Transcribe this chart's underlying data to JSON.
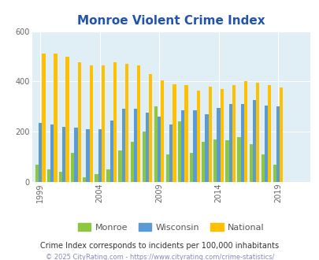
{
  "title": "Monroe Violent Crime Index",
  "title_color": "#2255aa",
  "subtitle": "Crime Index corresponds to incidents per 100,000 inhabitants",
  "footer": "© 2025 CityRating.com - https://www.cityrating.com/crime-statistics/",
  "years": [
    1999,
    2000,
    2001,
    2002,
    2003,
    2004,
    2005,
    2006,
    2007,
    2008,
    2009,
    2010,
    2011,
    2012,
    2013,
    2014,
    2015,
    2016,
    2017,
    2018,
    2019,
    2020,
    2021
  ],
  "monroe": [
    70,
    50,
    40,
    115,
    20,
    30,
    50,
    125,
    160,
    200,
    300,
    110,
    240,
    115,
    160,
    170,
    165,
    180,
    150,
    110,
    70,
    0,
    0
  ],
  "wisconsin": [
    235,
    230,
    220,
    215,
    210,
    210,
    245,
    290,
    290,
    275,
    260,
    230,
    285,
    285,
    270,
    295,
    310,
    310,
    325,
    305,
    300,
    0,
    0
  ],
  "national": [
    510,
    510,
    500,
    475,
    465,
    465,
    475,
    470,
    465,
    430,
    405,
    390,
    385,
    365,
    380,
    370,
    385,
    400,
    395,
    385,
    375,
    0,
    0
  ],
  "monroe_color": "#8dc63f",
  "wisconsin_color": "#5b9bd5",
  "national_color": "#ffc000",
  "bg_color": "#e0eff5",
  "ylim": [
    0,
    600
  ],
  "yticks": [
    0,
    200,
    400,
    600
  ],
  "xlabel_ticks": [
    1999,
    2004,
    2009,
    2014,
    2019
  ],
  "bar_width": 0.28,
  "legend_labels": [
    "Monroe",
    "Wisconsin",
    "National"
  ],
  "subtitle_color": "#333333",
  "footer_color": "#8888bb",
  "title_fontsize": 11,
  "tick_fontsize": 7,
  "subtitle_fontsize": 7,
  "footer_fontsize": 6
}
